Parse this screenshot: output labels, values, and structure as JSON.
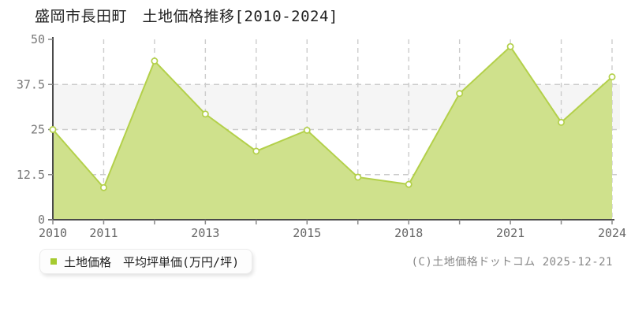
{
  "header": {
    "title": "盛岡市長田町　土地価格推移[2010-2024]"
  },
  "legend": {
    "label": "土地価格　平均坪単価(万円/坪)",
    "marker_color": "#a5ca2f"
  },
  "footer": {
    "copyright": "(C)土地価格ドットコム 2025-12-21"
  },
  "colors": {
    "area_fill": "#cfe18c",
    "line": "#b3d04a",
    "marker_fill": "#ffffff",
    "grid_dashed": "#cccccc",
    "band_fill": "#f5f5f5",
    "axis": "#4a4a4a",
    "y_tick_label": "#777777",
    "x_tick_label": "#666666"
  },
  "chart_data": {
    "type": "area",
    "title": "盛岡市長田町 土地価格推移[2010-2024]",
    "ylabel": "平均坪単価(万円/坪)",
    "ylim": [
      0,
      50
    ],
    "yticks": [
      0,
      12.5,
      25,
      37.5,
      50
    ],
    "ytick_labels": [
      "0",
      "12.5",
      "25",
      "37.5",
      "50"
    ],
    "x_tick_labels": [
      "2010",
      "2011",
      "",
      "2013",
      "",
      "2015",
      "",
      "2018",
      "",
      "2021",
      "",
      "2024"
    ],
    "values": [
      25,
      8.9,
      44,
      29.3,
      19,
      24.8,
      11.8,
      9.8,
      35,
      48,
      27,
      39.6
    ],
    "series_name": "土地価格 平均坪単価(万円/坪)",
    "grid": "dashed",
    "shaded_band": [
      25,
      37.5
    ],
    "legend_position": "bottom-left"
  }
}
